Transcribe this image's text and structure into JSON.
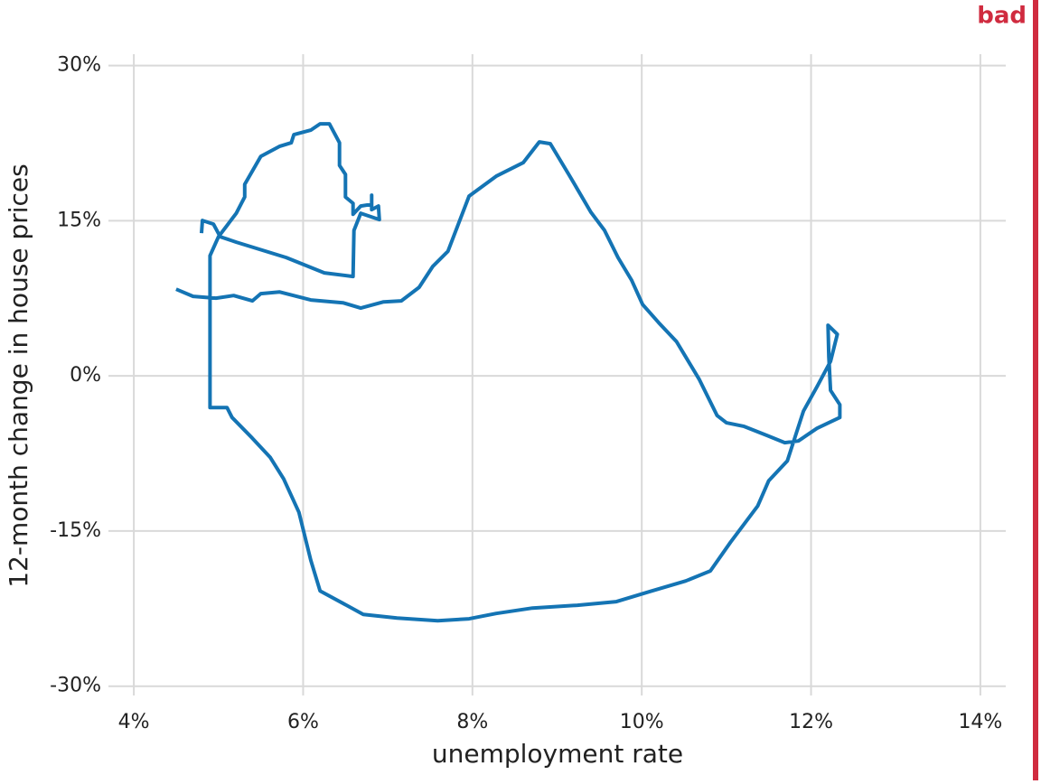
{
  "chart_data": {
    "type": "line",
    "annotation": "bad",
    "annotation_color": "#d02b3f",
    "x_label": "unemployment rate",
    "y_label": "12-month change in house prices",
    "color": "#1474b4",
    "grid": true,
    "xlim": [
      3.7,
      14.3
    ],
    "ylim": [
      -30.9,
      31.1
    ],
    "xticks": [
      {
        "value": 4,
        "label": "4%"
      },
      {
        "value": 6,
        "label": "6%"
      },
      {
        "value": 8,
        "label": "8%"
      },
      {
        "value": 10,
        "label": "10%"
      },
      {
        "value": 12,
        "label": "12%"
      },
      {
        "value": 14,
        "label": "14%"
      }
    ],
    "yticks": [
      {
        "value": -30,
        "label": "-30%"
      },
      {
        "value": -15,
        "label": "-15%"
      },
      {
        "value": 0,
        "label": "0%"
      },
      {
        "value": 15,
        "label": "15%"
      },
      {
        "value": 30,
        "label": "30%"
      }
    ],
    "x": [
      4.5,
      4.7,
      4.97,
      5.18,
      5.4,
      5.5,
      5.72,
      6.09,
      6.47,
      6.68,
      6.95,
      7.16,
      7.37,
      7.53,
      7.71,
      7.96,
      8.28,
      8.6,
      8.79,
      8.92,
      9.15,
      9.4,
      9.56,
      9.72,
      9.88,
      10.01,
      10.2,
      10.41,
      10.68,
      10.89,
      11.0,
      11.21,
      11.48,
      11.69,
      11.85,
      12.07,
      12.23,
      12.34,
      12.34,
      12.23,
      12.21,
      12.2,
      12.31,
      12.23,
      12.07,
      11.91,
      11.72,
      11.5,
      11.37,
      11.05,
      10.81,
      10.52,
      10.09,
      9.7,
      9.24,
      8.71,
      8.28,
      7.96,
      7.59,
      7.11,
      6.71,
      6.2,
      6.09,
      5.95,
      5.77,
      5.61,
      5.4,
      5.16,
      5.1,
      4.9,
      4.9,
      5.0,
      5.21,
      5.31,
      5.31,
      5.5,
      5.72,
      5.86,
      5.89,
      6.09,
      6.2,
      6.31,
      6.43,
      6.43,
      6.5,
      6.5,
      6.59,
      6.59,
      6.68,
      6.81,
      6.81,
      6.81,
      6.89,
      6.9,
      6.68,
      6.6,
      6.59,
      6.25,
      5.8,
      5.21,
      5.02,
      4.94,
      4.81,
      4.8
    ],
    "values": [
      8.38,
      7.69,
      7.51,
      7.77,
      7.25,
      7.95,
      8.12,
      7.34,
      7.07,
      6.55,
      7.16,
      7.25,
      8.56,
      10.57,
      12.05,
      17.38,
      19.3,
      20.61,
      22.62,
      22.45,
      19.3,
      15.81,
      14.06,
      11.44,
      9.26,
      6.9,
      5.15,
      3.32,
      -0.35,
      -3.84,
      -4.54,
      -4.89,
      -5.76,
      -6.46,
      -6.29,
      -5.07,
      -4.45,
      -4.02,
      -2.79,
      -1.4,
      1.83,
      4.89,
      4.02,
      1.4,
      -1.05,
      -3.41,
      -8.21,
      -10.13,
      -12.58,
      -16.07,
      -18.86,
      -19.83,
      -20.87,
      -21.83,
      -22.18,
      -22.45,
      -22.97,
      -23.49,
      -23.67,
      -23.41,
      -23.06,
      -20.79,
      -17.82,
      -13.19,
      -9.96,
      -7.86,
      -6.03,
      -4.02,
      -3.06,
      -3.06,
      11.62,
      13.45,
      15.72,
      17.29,
      18.52,
      21.22,
      22.18,
      22.53,
      23.32,
      23.76,
      24.37,
      24.37,
      22.53,
      20.35,
      19.48,
      17.29,
      16.68,
      15.63,
      16.42,
      16.59,
      17.47,
      16.07,
      16.42,
      15.11,
      15.72,
      14.06,
      9.61,
      9.96,
      11.44,
      12.93,
      13.45,
      14.67,
      15.02,
      13.8
    ]
  }
}
